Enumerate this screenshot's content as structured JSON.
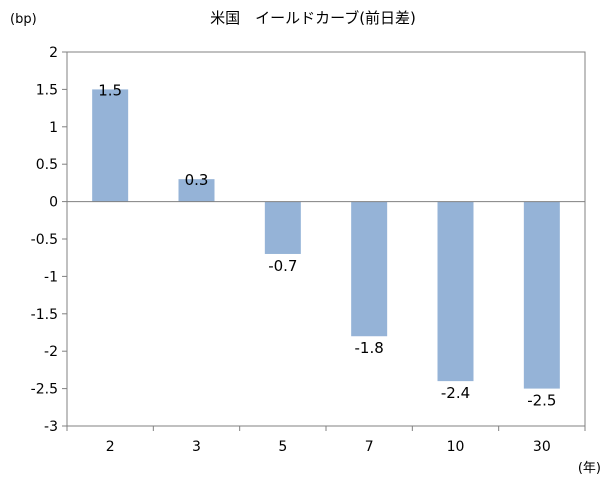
{
  "chart_data": {
    "type": "bar",
    "title": "米国　イールドカーブ(前日差)",
    "y_unit_label": "(bp)",
    "x_unit_label": "(年)",
    "categories": [
      "2",
      "3",
      "5",
      "7",
      "10",
      "30"
    ],
    "values": [
      1.5,
      0.3,
      -0.7,
      -1.8,
      -2.4,
      -2.5
    ],
    "data_labels": [
      "1.5",
      "0.3",
      "-0.7",
      "-1.8",
      "-2.4",
      "-2.5"
    ],
    "ylim": [
      -3,
      2
    ],
    "y_ticks": [
      2,
      1.5,
      1,
      0.5,
      0,
      -0.5,
      -1,
      -1.5,
      -2,
      -2.5,
      -3
    ],
    "y_tick_labels": [
      "2",
      "1.5",
      "1",
      "0.5",
      "0",
      "-0.5",
      "-1",
      "-1.5",
      "-2",
      "-2.5",
      "-3"
    ],
    "grid": false,
    "legend": "none",
    "bar_color": "#95b3d7"
  }
}
